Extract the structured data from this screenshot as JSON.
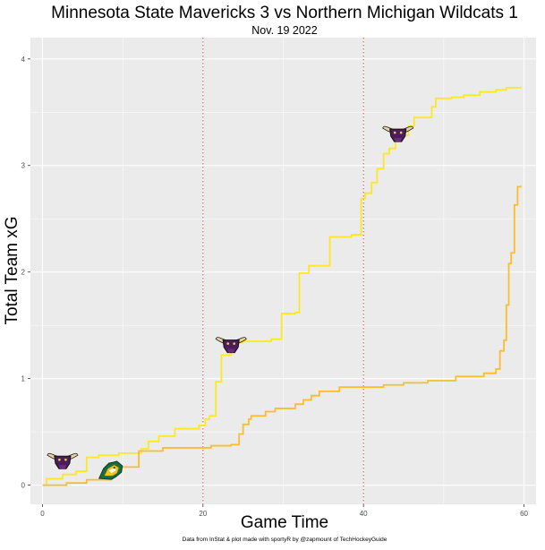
{
  "chart_data": {
    "type": "line",
    "title": "Minnesota State Mavericks 3 vs Northern Michigan Wildcats 1",
    "subtitle": "Nov. 19 2022",
    "xlabel": "Game Time",
    "ylabel": "Total Team xG",
    "caption": "Data from InStat & plot made with sportyR by @zapmount of TechHockeyGuide",
    "xlim": [
      -1.5,
      61.5
    ],
    "ylim": [
      -0.18,
      4.2
    ],
    "x_ticks": [
      0,
      20,
      40,
      60
    ],
    "y_ticks": [
      0,
      1,
      2,
      3,
      4
    ],
    "grid": true,
    "period_lines": [
      20,
      40
    ],
    "period_line_color": "#e8414b",
    "panel_color": "#ebebeb",
    "series": [
      {
        "color": "#fde725",
        "points": [
          [
            0,
            0
          ],
          [
            0.5,
            0.06
          ],
          [
            2.5,
            0.1
          ],
          [
            4.2,
            0.13
          ],
          [
            5.5,
            0.26
          ],
          [
            7,
            0.28
          ],
          [
            9.5,
            0.3
          ],
          [
            12.3,
            0.34
          ],
          [
            13.2,
            0.41
          ],
          [
            14.5,
            0.46
          ],
          [
            16.5,
            0.53
          ],
          [
            19.5,
            0.56
          ],
          [
            20.3,
            0.62
          ],
          [
            20.8,
            0.65
          ],
          [
            21.6,
            0.97
          ],
          [
            22.3,
            1.22
          ],
          [
            23.5,
            1.34
          ],
          [
            25,
            1.35
          ],
          [
            28.5,
            1.37
          ],
          [
            29.8,
            1.61
          ],
          [
            31.5,
            1.62
          ],
          [
            32,
            1.99
          ],
          [
            33.2,
            2.06
          ],
          [
            35.8,
            2.33
          ],
          [
            38.5,
            2.35
          ],
          [
            39.7,
            2.69
          ],
          [
            40.2,
            2.74
          ],
          [
            41,
            2.84
          ],
          [
            41.7,
            2.97
          ],
          [
            42.5,
            3.11
          ],
          [
            43.2,
            3.16
          ],
          [
            44,
            3.28
          ],
          [
            45.6,
            3.37
          ],
          [
            46.3,
            3.45
          ],
          [
            48.5,
            3.55
          ],
          [
            49,
            3.63
          ],
          [
            51,
            3.64
          ],
          [
            52.5,
            3.66
          ],
          [
            54.5,
            3.69
          ],
          [
            56.5,
            3.71
          ],
          [
            57.8,
            3.73
          ],
          [
            59.6,
            3.74
          ]
        ]
      },
      {
        "color": "#fbbd2c",
        "points": [
          [
            0,
            0
          ],
          [
            3,
            0.02
          ],
          [
            5.5,
            0.05
          ],
          [
            8.5,
            0.16
          ],
          [
            9.5,
            0.17
          ],
          [
            12,
            0.32
          ],
          [
            15,
            0.35
          ],
          [
            21,
            0.37
          ],
          [
            23.5,
            0.38
          ],
          [
            24.5,
            0.48
          ],
          [
            25,
            0.57
          ],
          [
            25.7,
            0.62
          ],
          [
            26,
            0.65
          ],
          [
            27.8,
            0.69
          ],
          [
            29,
            0.72
          ],
          [
            31.5,
            0.76
          ],
          [
            32.5,
            0.8
          ],
          [
            33.5,
            0.84
          ],
          [
            34.5,
            0.88
          ],
          [
            37,
            0.92
          ],
          [
            42.5,
            0.94
          ],
          [
            45,
            0.96
          ],
          [
            48,
            0.98
          ],
          [
            51.5,
            1.02
          ],
          [
            55,
            1.05
          ],
          [
            56.5,
            1.09
          ],
          [
            57,
            1.26
          ],
          [
            57.5,
            1.36
          ],
          [
            57.8,
            1.69
          ],
          [
            58.1,
            2.08
          ],
          [
            58.4,
            2.18
          ],
          [
            58.8,
            2.63
          ],
          [
            59.2,
            2.8
          ],
          [
            59.6,
            2.81
          ]
        ]
      }
    ],
    "logos": [
      {
        "team": "Minnesota State Mavericks",
        "x": 2.5,
        "y": 0.23,
        "icon": "maverick-bull-logo"
      },
      {
        "team": "Northern Michigan Wildcats",
        "x": 8.5,
        "y": 0.13,
        "icon": "wildcat-logo"
      },
      {
        "team": "Minnesota State Mavericks",
        "x": 23.5,
        "y": 1.32,
        "icon": "maverick-bull-logo"
      },
      {
        "team": "Minnesota State Mavericks",
        "x": 44.3,
        "y": 3.3,
        "icon": "maverick-bull-logo"
      }
    ]
  }
}
